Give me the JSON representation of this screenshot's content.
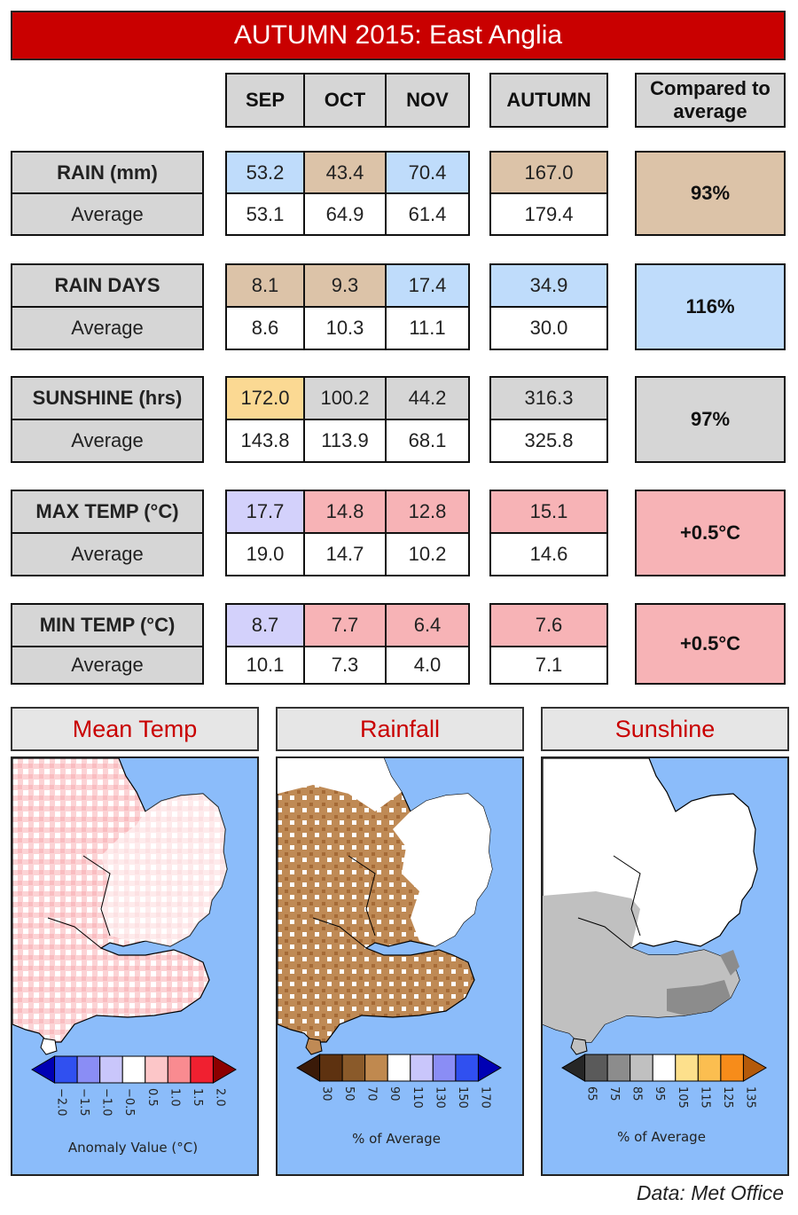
{
  "title": "AUTUMN 2015: East Anglia",
  "headers": {
    "sep": "SEP",
    "oct": "OCT",
    "nov": "NOV",
    "autumn": "AUTUMN",
    "compared": "Compared to average"
  },
  "rows": [
    {
      "label": "RAIN (mm)",
      "avg_label": "Average",
      "sep": "53.2",
      "oct": "43.4",
      "nov": "70.4",
      "autumn": "167.0",
      "avg": {
        "sep": "53.1",
        "oct": "64.9",
        "nov": "61.4",
        "autumn": "179.4"
      },
      "compared": "93%"
    },
    {
      "label": "RAIN DAYS",
      "avg_label": "Average",
      "sep": "8.1",
      "oct": "9.3",
      "nov": "17.4",
      "autumn": "34.9",
      "avg": {
        "sep": "8.6",
        "oct": "10.3",
        "nov": "11.1",
        "autumn": "30.0"
      },
      "compared": "116%"
    },
    {
      "label": "SUNSHINE (hrs)",
      "avg_label": "Average",
      "sep": "172.0",
      "oct": "100.2",
      "nov": "44.2",
      "autumn": "316.3",
      "avg": {
        "sep": "143.8",
        "oct": "113.9",
        "nov": "68.1",
        "autumn": "325.8"
      },
      "compared": "97%"
    },
    {
      "label": "MAX TEMP (°C)",
      "avg_label": "Average",
      "sep": "17.7",
      "oct": "14.8",
      "nov": "12.8",
      "autumn": "15.1",
      "avg": {
        "sep": "19.0",
        "oct": "14.7",
        "nov": "10.2",
        "autumn": "14.6"
      },
      "compared": "+0.5°C"
    },
    {
      "label": "MIN TEMP (°C)",
      "avg_label": "Average",
      "sep": "8.7",
      "oct": "7.7",
      "nov": "6.4",
      "autumn": "7.6",
      "avg": {
        "sep": "10.1",
        "oct": "7.3",
        "nov": "4.0",
        "autumn": "7.1"
      },
      "compared": "+0.5°C"
    }
  ],
  "cell_colors": {
    "grey": "#d6d6d6",
    "blue": "#bfdcfb",
    "tan": "#dcc3a8",
    "yellow": "#fbd993",
    "pink": "#f7b3b6",
    "lavender": "#d3d1fb"
  },
  "maps": {
    "mean_temp": {
      "title": "Mean Temp",
      "legend_ticks": [
        "−2.0",
        "−1.5",
        "−1.0",
        "−0.5",
        "0.5",
        "1.0",
        "1.5",
        "2.0"
      ],
      "legend_label": "Anomaly Value (°C)",
      "legend_colors": [
        "#0000b4",
        "#3050f0",
        "#8a8df5",
        "#c9c6fb",
        "#ffffff",
        "#fcc6c8",
        "#f98b90",
        "#f02030",
        "#8c0000"
      ]
    },
    "rainfall": {
      "title": "Rainfall",
      "legend_ticks": [
        "30",
        "50",
        "70",
        "90",
        "110",
        "130",
        "150",
        "170"
      ],
      "legend_label": "% of Average",
      "legend_colors": [
        "#3a1a08",
        "#5e3210",
        "#8a5a2a",
        "#c0894f",
        "#ffffff",
        "#c9c6fb",
        "#8a8df5",
        "#3050f0",
        "#0000b4"
      ]
    },
    "sunshine": {
      "title": "Sunshine",
      "legend_ticks": [
        "65",
        "75",
        "85",
        "95",
        "105",
        "115",
        "125",
        "135"
      ],
      "legend_label": "% of Average",
      "legend_colors": [
        "#262626",
        "#5a5a5a",
        "#8c8c8c",
        "#c0c0c0",
        "#ffffff",
        "#fde08c",
        "#fbbe50",
        "#f78c1a",
        "#b45a0a"
      ]
    }
  },
  "credit": "Data: Met Office"
}
